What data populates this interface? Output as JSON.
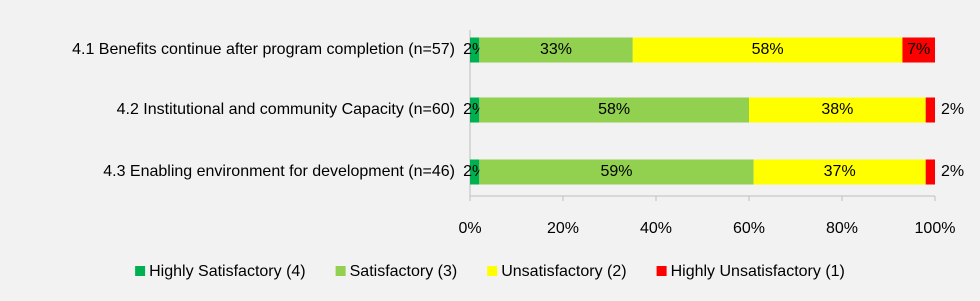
{
  "chart_data": {
    "type": "stacked-bar-horizontal",
    "categories": [
      "4.1 Benefits continue after program completion (n=57)",
      "4.2 Institutional and community Capacity (n=60)",
      "4.3 Enabling environment for development (n=46)"
    ],
    "series": [
      {
        "name": "Highly Satisfactory (4)",
        "color": "#00b050",
        "values": [
          2,
          2,
          2
        ],
        "value_labels": [
          "2%",
          "2%",
          "2%"
        ]
      },
      {
        "name": "Satisfactory (3)",
        "color": "#92d050",
        "values": [
          33,
          58,
          59
        ],
        "value_labels": [
          "33%",
          "58%",
          "59%"
        ]
      },
      {
        "name": "Unsatisfactory (2)",
        "color": "#ffff00",
        "values": [
          58,
          38,
          37
        ],
        "value_labels": [
          "58%",
          "38%",
          "37%"
        ]
      },
      {
        "name": "Highly Unsatisfactory (1)",
        "color": "#ff0000",
        "values": [
          7,
          2,
          2
        ],
        "value_labels": [
          "7%",
          "2%",
          "2%"
        ]
      }
    ],
    "xlim": [
      0,
      100
    ],
    "xticks": [
      {
        "value": 0,
        "label": "0%"
      },
      {
        "value": 20,
        "label": "20%"
      },
      {
        "value": 40,
        "label": "40%"
      },
      {
        "value": 60,
        "label": "60%"
      },
      {
        "value": 80,
        "label": "80%"
      },
      {
        "value": 100,
        "label": "100%"
      }
    ],
    "legend": "bottom"
  }
}
